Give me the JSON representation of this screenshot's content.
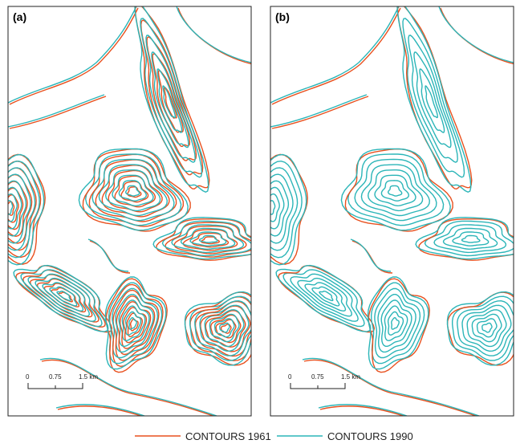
{
  "panels": [
    {
      "label": "(a)",
      "scale": [
        "0",
        "0.75",
        "1.5 km"
      ]
    },
    {
      "label": "(b)",
      "scale": [
        "0",
        "0.75",
        "1.5 km"
      ]
    }
  ],
  "legend": [
    "CONTOURS 1961",
    "CONTOURS 1990"
  ]
}
